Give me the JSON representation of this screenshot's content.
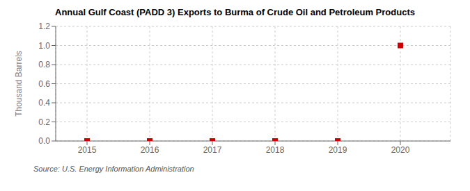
{
  "chart_data": {
    "type": "scatter",
    "title": "Annual Gulf Coast (PADD 3) Exports to Burma of Crude Oil and Petroleum Products",
    "ylabel": "Thousand Barrels",
    "annotations": [
      "Source: U.S. Energy Information Administration"
    ],
    "x": [
      2015,
      2016,
      2017,
      2018,
      2019,
      2020
    ],
    "values": [
      0,
      0,
      0,
      0,
      0,
      1.0
    ],
    "color": "#cc0000",
    "marker": "square",
    "xlim": [
      2014.5,
      2020.8
    ],
    "ylim": [
      0.0,
      1.2
    ],
    "xticks": [
      2015,
      2016,
      2017,
      2018,
      2019,
      2020
    ],
    "yticks": [
      {
        "value": 0.0,
        "label": "0.0"
      },
      0.2,
      0.4,
      0.6,
      0.8,
      {
        "value": 1.0,
        "label": "1.0"
      },
      1.2
    ],
    "grid": true
  }
}
